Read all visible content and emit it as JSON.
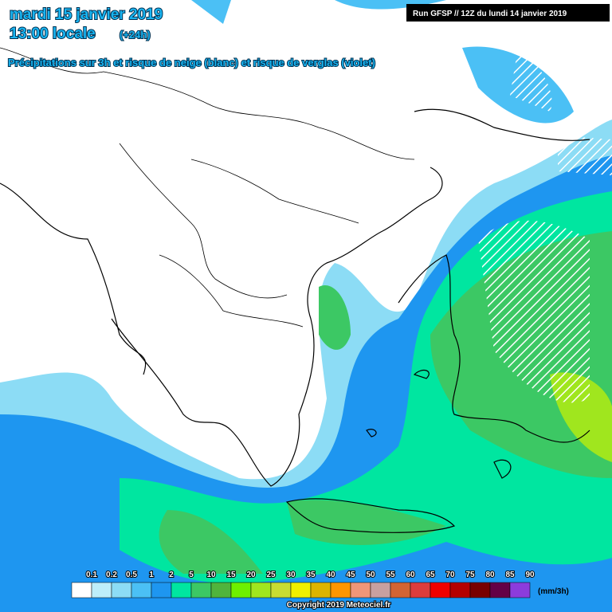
{
  "header": {
    "date": "mardi 15 janvier 2019",
    "time": "13:00 locale",
    "lead": "(+24h)",
    "subtitle": "Précipitations sur 3h et risque de neige (blanc) et risque de verglas (violet)",
    "run": "Run GFSP // 12Z du lundi 14 janvier 2019"
  },
  "legend": {
    "unit": "(mm/3h)",
    "items": [
      {
        "label": "0.1",
        "color": "#ffffff"
      },
      {
        "label": "0.2",
        "color": "#bdeefa"
      },
      {
        "label": "0.5",
        "color": "#8cdcf5"
      },
      {
        "label": "1",
        "color": "#4bc0f5"
      },
      {
        "label": "2",
        "color": "#1e96f0"
      },
      {
        "label": "5",
        "color": "#00e6a0"
      },
      {
        "label": "10",
        "color": "#3cc864"
      },
      {
        "label": "15",
        "color": "#50b43c"
      },
      {
        "label": "20",
        "color": "#6ef000"
      },
      {
        "label": "25",
        "color": "#a0e61e"
      },
      {
        "label": "30",
        "color": "#c8dc32"
      },
      {
        "label": "35",
        "color": "#f0f000"
      },
      {
        "label": "40",
        "color": "#dcb400"
      },
      {
        "label": "45",
        "color": "#ff9600"
      },
      {
        "label": "50",
        "color": "#f09678"
      },
      {
        "label": "55",
        "color": "#c8a0a0"
      },
      {
        "label": "60",
        "color": "#d26432"
      },
      {
        "label": "65",
        "color": "#dc3c3c"
      },
      {
        "label": "70",
        "color": "#f00000"
      },
      {
        "label": "75",
        "color": "#b40000"
      },
      {
        "label": "80",
        "color": "#780000"
      },
      {
        "label": "85",
        "color": "#640046"
      },
      {
        "label": "90",
        "color": "#8c3cdc"
      }
    ]
  },
  "footer": {
    "copyright": "Copyright 2019 Meteociel.fr"
  }
}
